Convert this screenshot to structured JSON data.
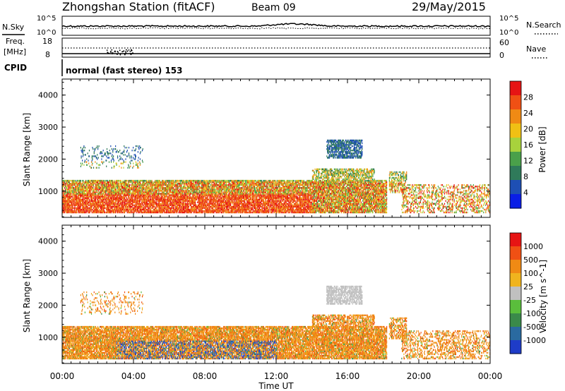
{
  "header": {
    "title": "Zhongshan Station (fitACF)",
    "beam": "Beam 09",
    "date": "29/May/2015"
  },
  "status_panels": {
    "nsky_label": "N.Sky",
    "nsky_top": "10^5",
    "nsky_bottom": "10^0",
    "nsearch_label": "N.Search",
    "nsearch_top": "10^5",
    "nsearch_bottom": "10^0",
    "freq_label": "Freq.",
    "freq_unit": "[MHz]",
    "freq_top": "18",
    "freq_bottom": "8",
    "nave_label": "Nave",
    "nave_top": "60",
    "nave_bottom": "0",
    "cpid_label": "CPID",
    "cpid_text": "normal (fast stereo) 153"
  },
  "colors": {
    "power": [
      "#0a1ee6",
      "#1e4fb4",
      "#2f7a5a",
      "#4aa04a",
      "#a8d23c",
      "#f0c014",
      "#f08a14",
      "#f05014",
      "#e61414"
    ],
    "velocity": [
      "#e61414",
      "#f05014",
      "#f08a14",
      "#f0b41e",
      "#c0c0c0",
      "#5abe3c",
      "#3a8a4a",
      "#2a6aa0",
      "#1e3cc8"
    ]
  },
  "chart_data": [
    {
      "type": "heatmap",
      "name": "Power",
      "xlabel": "",
      "ylabel": "Slant Range [km]",
      "xlim": [
        0,
        24
      ],
      "ylim": [
        180,
        4500
      ],
      "yticks": [
        "1000",
        "2000",
        "3000",
        "4000"
      ],
      "colorbar_label": "Power [dB]",
      "colorbar_ticks": [
        "4",
        "8",
        "12",
        "16",
        "20",
        "24",
        "28"
      ],
      "clim": [
        0,
        30
      ]
    },
    {
      "type": "heatmap",
      "name": "Velocity",
      "xlabel": "Time UT",
      "ylabel": "Slant Range [km]",
      "xlim": [
        0,
        24
      ],
      "ylim": [
        180,
        4500
      ],
      "xticks": [
        "00:00",
        "04:00",
        "08:00",
        "12:00",
        "16:00",
        "20:00",
        "00:00"
      ],
      "yticks": [
        "1000",
        "2000",
        "3000",
        "4000"
      ],
      "colorbar_label": "Velocity [m s^-1]",
      "colorbar_ticks": [
        "1000",
        "500",
        "100",
        "25",
        "-25",
        "-100",
        "-500",
        "-1000"
      ]
    }
  ]
}
